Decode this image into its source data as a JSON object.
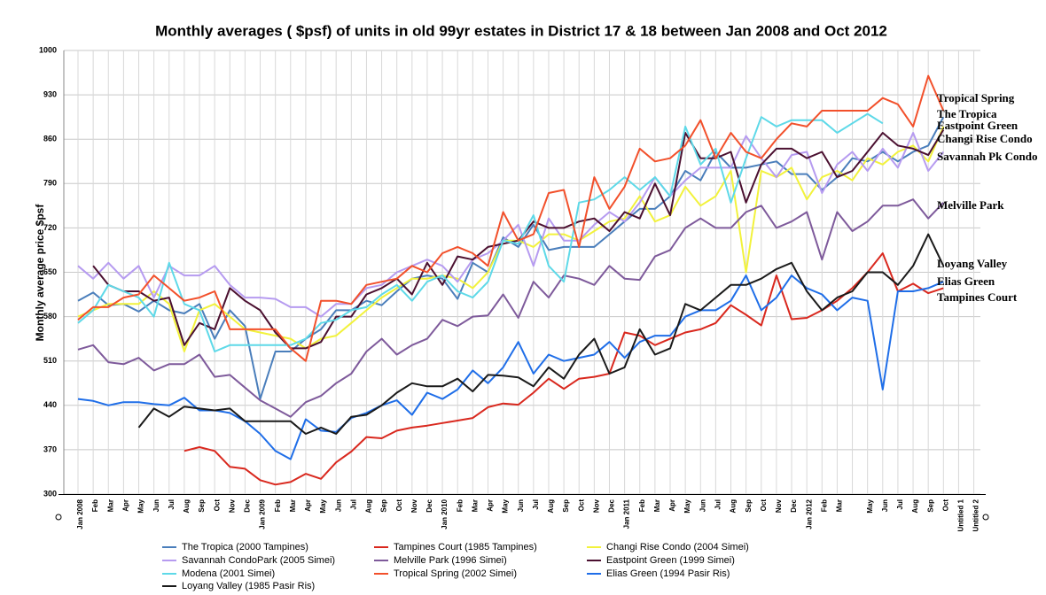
{
  "chart_data": {
    "type": "line",
    "title": "Monthly averages ( $psf) of units in old 99yr estates in District 17 & 18 between Jan 2008 and  Oct 2012",
    "y_label": "Monthly average price $psf",
    "grid": true,
    "ylim": [
      300,
      1000
    ],
    "yticks": [
      300,
      370,
      440,
      510,
      580,
      650,
      720,
      790,
      860,
      930,
      1000
    ],
    "categories": [
      "Jan 2008",
      "Feb",
      "Mar",
      "Apr",
      "May",
      "Jun",
      "Jul",
      "Aug",
      "Sep",
      "Oct",
      "Nov",
      "Dec",
      "Jan 2009",
      "Feb",
      "Mar",
      "Apr",
      "May",
      "Jun",
      "Jul",
      "Aug",
      "Sep",
      "Oct",
      "Nov",
      "Dec",
      "Jan 2010",
      "Feb",
      "Mar",
      "Apr",
      "May",
      "Jun",
      "Jul",
      "Aug",
      "Sep",
      "Oct",
      "Nov",
      "Dec",
      "Jan 2011",
      "Feb",
      "Mar",
      "Apr",
      "May",
      "Jun",
      "Jul",
      "Aug",
      "Sep",
      "Oct",
      "Nov",
      "Dec",
      "Jan 2012",
      "Feb",
      "Mar",
      null,
      "May",
      "Jun",
      "Jul",
      "Aug",
      "Sep",
      "Oct",
      "Untitled 1",
      "Untitled 2"
    ],
    "series": [
      {
        "name": "The Tropica (2000 Tampines)",
        "color": "#4a7ebb",
        "values": [
          605,
          618,
          598,
          600,
          588,
          605,
          590,
          585,
          600,
          545,
          590,
          565,
          450,
          525,
          525,
          545,
          560,
          590,
          590,
          605,
          598,
          620,
          640,
          645,
          640,
          608,
          665,
          650,
          705,
          690,
          725,
          685,
          690,
          690,
          690,
          710,
          730,
          750,
          750,
          770,
          810,
          795,
          840,
          815,
          815,
          820,
          825,
          805,
          805,
          780,
          800,
          830,
          825,
          840,
          825,
          840,
          850,
          895,
          null,
          null
        ]
      },
      {
        "name": "Tampines Court (1985 Tampines)",
        "color": "#d9281e",
        "values": [
          null,
          null,
          null,
          null,
          null,
          null,
          null,
          368,
          374,
          368,
          343,
          340,
          322,
          315,
          319,
          332,
          324,
          350,
          367,
          390,
          388,
          400,
          405,
          408,
          412,
          416,
          420,
          437,
          443,
          441,
          460,
          482,
          466,
          482,
          485,
          490,
          555,
          550,
          535,
          545,
          555,
          560,
          570,
          598,
          583,
          566,
          645,
          576,
          578,
          590,
          605,
          625,
          650,
          680,
          620,
          632,
          617,
          625,
          null,
          null
        ]
      },
      {
        "name": "Changi Rise Condo  (2004 Simei)",
        "color": "#f2f23c",
        "values": [
          580,
          590,
          600,
          600,
          600,
          620,
          600,
          525,
          590,
          600,
          580,
          560,
          555,
          550,
          545,
          530,
          545,
          550,
          570,
          590,
          610,
          625,
          640,
          640,
          645,
          640,
          625,
          650,
          700,
          700,
          690,
          710,
          710,
          700,
          715,
          730,
          735,
          770,
          730,
          740,
          785,
          755,
          770,
          810,
          650,
          810,
          800,
          815,
          765,
          800,
          810,
          795,
          830,
          820,
          840,
          850,
          825,
          880,
          null,
          null
        ]
      },
      {
        "name": "Savannah CondoPark (2005 Simei)",
        "color": "#b69bf0",
        "values": [
          660,
          640,
          665,
          640,
          660,
          610,
          660,
          645,
          645,
          660,
          630,
          610,
          610,
          608,
          595,
          595,
          580,
          600,
          600,
          625,
          630,
          650,
          660,
          670,
          660,
          635,
          670,
          680,
          700,
          725,
          660,
          735,
          700,
          700,
          725,
          745,
          730,
          760,
          800,
          770,
          795,
          815,
          815,
          815,
          865,
          830,
          800,
          835,
          840,
          775,
          820,
          840,
          810,
          845,
          815,
          870,
          810,
          840,
          null,
          null
        ]
      },
      {
        "name": "Melville Park (1996 Simei)",
        "color": "#7e5a9b",
        "values": [
          528,
          535,
          508,
          505,
          515,
          495,
          505,
          505,
          520,
          485,
          488,
          468,
          448,
          435,
          422,
          445,
          455,
          475,
          490,
          525,
          545,
          520,
          535,
          545,
          575,
          565,
          580,
          582,
          615,
          578,
          635,
          610,
          645,
          640,
          630,
          660,
          640,
          638,
          675,
          685,
          720,
          735,
          720,
          720,
          745,
          755,
          720,
          730,
          745,
          670,
          745,
          715,
          730,
          755,
          755,
          765,
          735,
          760,
          null,
          null
        ]
      },
      {
        "name": "Eastpoint Green (1999 Simei)",
        "color": "#4b1030",
        "values": [
          null,
          660,
          630,
          620,
          620,
          605,
          610,
          535,
          570,
          560,
          625,
          605,
          590,
          555,
          530,
          530,
          540,
          580,
          580,
          615,
          625,
          640,
          615,
          665,
          630,
          675,
          670,
          690,
          695,
          700,
          730,
          720,
          720,
          730,
          735,
          715,
          745,
          735,
          790,
          740,
          870,
          830,
          830,
          840,
          760,
          820,
          845,
          845,
          830,
          840,
          800,
          810,
          840,
          870,
          850,
          845,
          835,
          875,
          null,
          null
        ]
      },
      {
        "name": "Modena (2001 Simei)",
        "color": "#5ed9e8",
        "values": [
          570,
          590,
          630,
          620,
          610,
          580,
          665,
          600,
          590,
          525,
          535,
          535,
          535,
          535,
          535,
          545,
          570,
          575,
          590,
          595,
          615,
          630,
          605,
          635,
          645,
          620,
          610,
          635,
          700,
          695,
          740,
          660,
          635,
          760,
          765,
          780,
          800,
          780,
          800,
          770,
          880,
          820,
          845,
          760,
          830,
          895,
          880,
          890,
          890,
          890,
          870,
          885,
          900,
          885,
          null,
          null,
          null,
          null,
          null,
          null
        ]
      },
      {
        "name": "Tropical Spring (2002 Simei)",
        "color": "#f2502b",
        "values": [
          575,
          595,
          595,
          610,
          615,
          645,
          625,
          605,
          610,
          620,
          560,
          560,
          560,
          560,
          530,
          510,
          605,
          605,
          600,
          630,
          635,
          640,
          660,
          650,
          680,
          690,
          680,
          660,
          745,
          700,
          710,
          775,
          780,
          690,
          800,
          750,
          785,
          845,
          825,
          830,
          850,
          890,
          830,
          870,
          840,
          830,
          860,
          885,
          880,
          905,
          905,
          905,
          905,
          925,
          915,
          880,
          960,
          905,
          null,
          null
        ]
      },
      {
        "name": "Elias Green (1994 Pasir Ris)",
        "color": "#1f6ee8",
        "values": [
          450,
          447,
          440,
          445,
          445,
          442,
          440,
          452,
          432,
          432,
          428,
          415,
          395,
          368,
          355,
          418,
          400,
          398,
          420,
          428,
          440,
          448,
          425,
          460,
          450,
          465,
          495,
          475,
          500,
          540,
          490,
          520,
          510,
          515,
          520,
          540,
          515,
          540,
          550,
          550,
          580,
          590,
          590,
          605,
          645,
          590,
          610,
          645,
          625,
          615,
          590,
          610,
          605,
          465,
          620,
          620,
          625,
          635,
          null,
          null
        ]
      },
      {
        "name": "Loyang Valley (1985 Pasir Ris)",
        "color": "#1a1a1a",
        "values": [
          null,
          null,
          null,
          null,
          405,
          435,
          422,
          438,
          435,
          432,
          435,
          415,
          415,
          415,
          415,
          395,
          405,
          395,
          422,
          425,
          440,
          460,
          475,
          470,
          470,
          482,
          462,
          488,
          487,
          484,
          470,
          500,
          482,
          520,
          545,
          490,
          500,
          560,
          520,
          530,
          600,
          590,
          610,
          630,
          630,
          640,
          655,
          665,
          620,
          590,
          610,
          620,
          650,
          650,
          630,
          660,
          710,
          660,
          null,
          null
        ]
      }
    ],
    "annotations": [
      "Tropical Spring",
      "The Tropica",
      "Eastpoint Green",
      "Changi Rise Condo",
      "Savannah Pk Condo",
      "Melville Park",
      "Loyang Valley",
      "Elias Green",
      "Tampines Court"
    ]
  }
}
